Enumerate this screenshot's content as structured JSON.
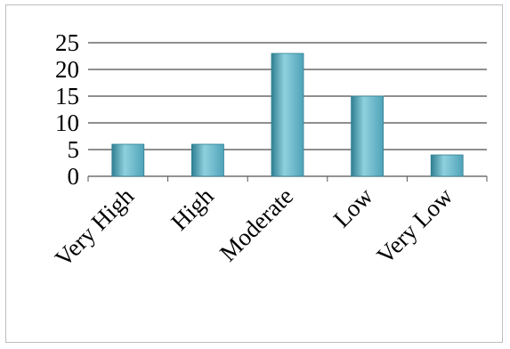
{
  "chart_data": {
    "type": "bar",
    "categories": [
      "Very High",
      "High",
      "Moderate",
      "Low",
      "Very Low"
    ],
    "values": [
      6,
      6,
      23,
      15,
      4
    ],
    "title": "",
    "xlabel": "",
    "ylabel": "",
    "ylim": [
      0,
      25
    ],
    "yticks": [
      0,
      5,
      10,
      15,
      20,
      25
    ],
    "grid": true,
    "legend": "none",
    "colors": {
      "bar_fill": "#4fa3b8",
      "bar_highlight": "#8fd0de",
      "bar_shadow": "#2f7f92",
      "grid": "#1f1f1f",
      "axis": "#555555"
    }
  }
}
